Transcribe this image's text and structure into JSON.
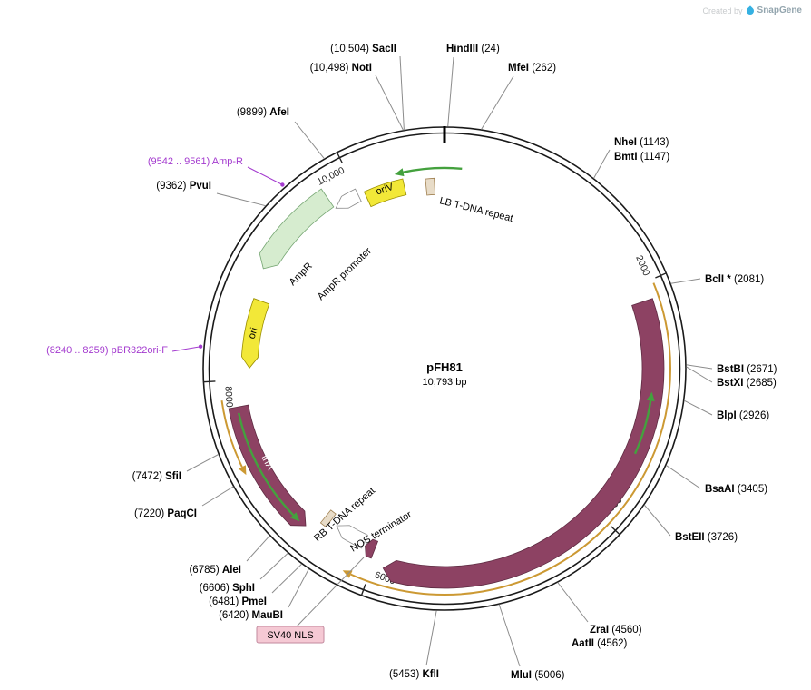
{
  "watermark": {
    "created_by": "Created by",
    "brand": "SnapGene"
  },
  "plasmid": {
    "name": "pFH81",
    "size": "10,793 bp",
    "length_bp": 10793
  },
  "colors": {
    "feature_maroon": "#8d4263",
    "feature_yellow": "#f2e838",
    "feature_pale_green": "#d6eccf",
    "arrow_green": "#44a13e",
    "arrow_orange": "#cc9933",
    "white_arrow": "#ffffff",
    "tdna_tan": "#e8dcc8",
    "primer_purple": "#a43bcf",
    "nls_pink_bg": "#f5c9d4",
    "ring_black": "#1a1a1a",
    "line_gray": "#8c8c8c"
  },
  "scale_ticks": [
    {
      "label": "2000",
      "value": 2000
    },
    {
      "label": "4000",
      "value": 4000
    },
    {
      "label": "6000",
      "value": 6000
    },
    {
      "label": "8000",
      "value": 8000
    },
    {
      "label": "10,000",
      "value": 10000
    }
  ],
  "sites": [
    {
      "name": "SacII",
      "pre": "(10,504) ",
      "post": "",
      "value": 10504
    },
    {
      "name": "NotI",
      "pre": "(10,498) ",
      "post": "",
      "value": 10498
    },
    {
      "name": "HindIII",
      "pre": "",
      "post": " (24)",
      "value": 24
    },
    {
      "name": "MfeI",
      "pre": "",
      "post": " (262)",
      "value": 262
    },
    {
      "name": "NheI",
      "pre": "",
      "post": " (1143)",
      "value": 1143
    },
    {
      "name": "BmtI",
      "pre": "",
      "post": " (1147)",
      "value": 1147
    },
    {
      "name": "BclI *",
      "pre": "",
      "post": " (2081)",
      "value": 2081
    },
    {
      "name": "BstBI",
      "pre": "",
      "post": " (2671)",
      "value": 2671
    },
    {
      "name": "BstXI",
      "pre": "",
      "post": " (2685)",
      "value": 2685
    },
    {
      "name": "BlpI",
      "pre": "",
      "post": " (2926)",
      "value": 2926
    },
    {
      "name": "BsaAI",
      "pre": "",
      "post": " (3405)",
      "value": 3405
    },
    {
      "name": "BstEII",
      "pre": "",
      "post": " (3726)",
      "value": 3726
    },
    {
      "name": "ZraI",
      "pre": "",
      "post": " (4560)",
      "value": 4560
    },
    {
      "name": "AatII",
      "pre": "",
      "post": " (4562)",
      "value": 4562
    },
    {
      "name": "MluI",
      "pre": "",
      "post": " (5006)",
      "value": 5006
    },
    {
      "name": "KflI",
      "pre": "(5453) ",
      "post": "",
      "value": 5453
    },
    {
      "name": "MauBI",
      "pre": "(6420) ",
      "post": "",
      "value": 6420
    },
    {
      "name": "PmeI",
      "pre": "(6481) ",
      "post": "",
      "value": 6481
    },
    {
      "name": "SphI",
      "pre": "(6606) ",
      "post": "",
      "value": 6606
    },
    {
      "name": "AleI",
      "pre": "(6785) ",
      "post": "",
      "value": 6785
    },
    {
      "name": "PaqCI",
      "pre": "(7220) ",
      "post": "",
      "value": 7220
    },
    {
      "name": "SfiI",
      "pre": "(7472) ",
      "post": "",
      "value": 7472
    },
    {
      "name": "PvuI",
      "pre": "(9362) ",
      "post": "",
      "value": 9362
    },
    {
      "name": "AfeI",
      "pre": "(9899) ",
      "post": "",
      "value": 9899
    }
  ],
  "primers": [
    {
      "label": "(9542 .. 9561)  Amp-R",
      "start": 9542,
      "end": 9561
    },
    {
      "label": "(8240 .. 8259)  pBR322ori-F",
      "start": 8240,
      "end": 8259
    }
  ],
  "features": [
    {
      "id": "oriv",
      "label": "oriV"
    },
    {
      "id": "lb",
      "label": "LB T-DNA repeat"
    },
    {
      "id": "amprprom",
      "label": "AmpR promoter"
    },
    {
      "id": "ampr",
      "label": "AmpR"
    },
    {
      "id": "ori",
      "label": "ori"
    },
    {
      "id": "trfa",
      "label": "trfA"
    },
    {
      "id": "cas9",
      "label": "ScCas9"
    },
    {
      "id": "nls",
      "label": "SV40 NLS"
    },
    {
      "id": "nos",
      "label": "NOS terminator"
    },
    {
      "id": "rb",
      "label": "RB T-DNA repeat"
    }
  ]
}
